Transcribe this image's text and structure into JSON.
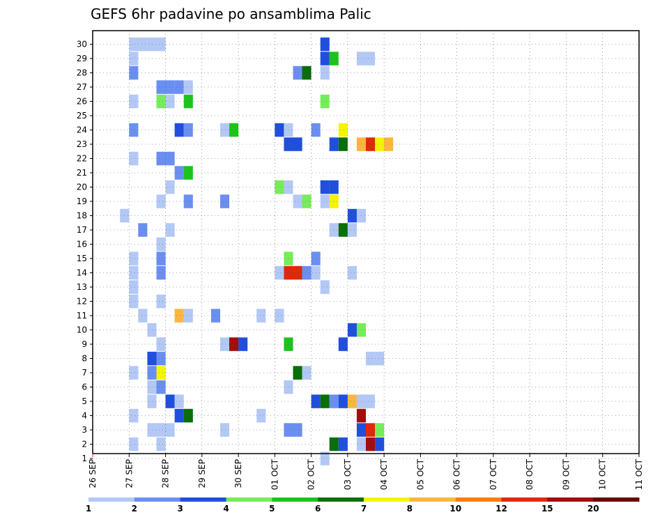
{
  "chart_data": {
    "type": "heatmap",
    "title": "GEFS 6hr padavine po ansamblima Palic",
    "x_labels": [
      "26 SEP",
      "27 SEP",
      "28 SEP",
      "29 SEP",
      "30 SEP",
      "01 OCT",
      "02 OCT",
      "03 OCT",
      "04 OCT",
      "05 OCT",
      "06 OCT",
      "07 OCT",
      "08 OCT",
      "09 OCT",
      "10 OCT",
      "11 OCT"
    ],
    "y_labels": [
      "1",
      "2",
      "3",
      "4",
      "5",
      "6",
      "7",
      "8",
      "9",
      "10",
      "11",
      "12",
      "13",
      "14",
      "15",
      "16",
      "17",
      "18",
      "19",
      "20",
      "21",
      "22",
      "23",
      "24",
      "25",
      "26",
      "27",
      "28",
      "29",
      "30"
    ],
    "ylim": [
      1,
      30
    ],
    "x_unit": "6-hour steps starting 26 SEP",
    "grid": true,
    "colorbar": {
      "labels": [
        "1",
        "2",
        "3",
        "4",
        "5",
        "6",
        "7",
        "8",
        "10",
        "12",
        "15",
        "20"
      ],
      "colors": [
        "#b3c8f5",
        "#6a8ff0",
        "#1f4fdc",
        "#76ec5a",
        "#1dc31d",
        "#0a6e0a",
        "#f4f400",
        "#fbb63e",
        "#fa7d10",
        "#e0280a",
        "#a30d0d",
        "#6a0606"
      ]
    },
    "cells_note": "each cell: [row(member), step(0=26 SEP 00z), color bin index 0-11]",
    "cells": [
      [
        30,
        4,
        0
      ],
      [
        30,
        5,
        0
      ],
      [
        30,
        6,
        0
      ],
      [
        30,
        7,
        0
      ],
      [
        30,
        25,
        2
      ],
      [
        29,
        4,
        0
      ],
      [
        29,
        25,
        2
      ],
      [
        29,
        26,
        4
      ],
      [
        29,
        29,
        0
      ],
      [
        29,
        30,
        0
      ],
      [
        28,
        4,
        1
      ],
      [
        28,
        22,
        1
      ],
      [
        28,
        23,
        5
      ],
      [
        28,
        25,
        0
      ],
      [
        27,
        7,
        1
      ],
      [
        27,
        8,
        1
      ],
      [
        27,
        9,
        1
      ],
      [
        27,
        10,
        0
      ],
      [
        26,
        4,
        0
      ],
      [
        26,
        7,
        3
      ],
      [
        26,
        8,
        0
      ],
      [
        26,
        10,
        4
      ],
      [
        26,
        25,
        3
      ],
      [
        24,
        4,
        1
      ],
      [
        24,
        9,
        2
      ],
      [
        24,
        10,
        1
      ],
      [
        24,
        14,
        0
      ],
      [
        24,
        15,
        4
      ],
      [
        24,
        20,
        2
      ],
      [
        24,
        21,
        0
      ],
      [
        24,
        24,
        1
      ],
      [
        24,
        27,
        6
      ],
      [
        23,
        21,
        2
      ],
      [
        23,
        22,
        2
      ],
      [
        23,
        26,
        2
      ],
      [
        23,
        27,
        5
      ],
      [
        23,
        29,
        7
      ],
      [
        23,
        30,
        9
      ],
      [
        23,
        31,
        6
      ],
      [
        23,
        32,
        7
      ],
      [
        22,
        4,
        0
      ],
      [
        22,
        7,
        1
      ],
      [
        22,
        8,
        1
      ],
      [
        21,
        9,
        1
      ],
      [
        21,
        10,
        4
      ],
      [
        20,
        8,
        0
      ],
      [
        20,
        20,
        3
      ],
      [
        20,
        21,
        0
      ],
      [
        20,
        25,
        2
      ],
      [
        20,
        26,
        2
      ],
      [
        19,
        7,
        0
      ],
      [
        19,
        10,
        1
      ],
      [
        19,
        14,
        1
      ],
      [
        19,
        22,
        0
      ],
      [
        19,
        23,
        3
      ],
      [
        19,
        25,
        0
      ],
      [
        19,
        26,
        6
      ],
      [
        18,
        3,
        0
      ],
      [
        18,
        28,
        2
      ],
      [
        18,
        29,
        0
      ],
      [
        17,
        5,
        1
      ],
      [
        17,
        8,
        0
      ],
      [
        17,
        26,
        0
      ],
      [
        17,
        27,
        5
      ],
      [
        17,
        28,
        0
      ],
      [
        16,
        7,
        0
      ],
      [
        15,
        4,
        0
      ],
      [
        15,
        7,
        1
      ],
      [
        15,
        21,
        3
      ],
      [
        15,
        24,
        1
      ],
      [
        14,
        4,
        0
      ],
      [
        14,
        7,
        1
      ],
      [
        14,
        20,
        0
      ],
      [
        14,
        21,
        9
      ],
      [
        14,
        22,
        9
      ],
      [
        14,
        23,
        1
      ],
      [
        14,
        24,
        0
      ],
      [
        14,
        28,
        0
      ],
      [
        13,
        4,
        0
      ],
      [
        13,
        25,
        0
      ],
      [
        12,
        4,
        0
      ],
      [
        12,
        7,
        0
      ],
      [
        11,
        5,
        0
      ],
      [
        11,
        9,
        7
      ],
      [
        11,
        10,
        0
      ],
      [
        11,
        13,
        1
      ],
      [
        11,
        18,
        0
      ],
      [
        11,
        20,
        0
      ],
      [
        10,
        6,
        0
      ],
      [
        10,
        28,
        2
      ],
      [
        10,
        29,
        3
      ],
      [
        9,
        7,
        0
      ],
      [
        9,
        14,
        0
      ],
      [
        9,
        15,
        10
      ],
      [
        9,
        16,
        2
      ],
      [
        9,
        21,
        4
      ],
      [
        9,
        27,
        2
      ],
      [
        8,
        6,
        2
      ],
      [
        8,
        7,
        1
      ],
      [
        8,
        30,
        0
      ],
      [
        8,
        31,
        0
      ],
      [
        7,
        4,
        0
      ],
      [
        7,
        6,
        1
      ],
      [
        7,
        7,
        6
      ],
      [
        7,
        22,
        5
      ],
      [
        7,
        23,
        0
      ],
      [
        6,
        6,
        0
      ],
      [
        6,
        7,
        1
      ],
      [
        6,
        21,
        0
      ],
      [
        5,
        6,
        0
      ],
      [
        5,
        8,
        2
      ],
      [
        5,
        9,
        0
      ],
      [
        5,
        24,
        2
      ],
      [
        5,
        25,
        5
      ],
      [
        5,
        26,
        1
      ],
      [
        5,
        27,
        2
      ],
      [
        5,
        28,
        7
      ],
      [
        5,
        29,
        0
      ],
      [
        5,
        29,
        0
      ],
      [
        5,
        30,
        0
      ],
      [
        4,
        4,
        0
      ],
      [
        4,
        9,
        2
      ],
      [
        4,
        10,
        5
      ],
      [
        4,
        18,
        0
      ],
      [
        4,
        29,
        10
      ],
      [
        3,
        6,
        0
      ],
      [
        3,
        7,
        0
      ],
      [
        3,
        8,
        0
      ],
      [
        3,
        14,
        0
      ],
      [
        3,
        21,
        1
      ],
      [
        3,
        22,
        1
      ],
      [
        3,
        29,
        2
      ],
      [
        3,
        30,
        9
      ],
      [
        3,
        31,
        3
      ],
      [
        2,
        4,
        0
      ],
      [
        2,
        7,
        0
      ],
      [
        2,
        26,
        5
      ],
      [
        2,
        27,
        2
      ],
      [
        2,
        29,
        0
      ],
      [
        2,
        30,
        10
      ],
      [
        2,
        31,
        2
      ],
      [
        1,
        25,
        0
      ]
    ]
  }
}
